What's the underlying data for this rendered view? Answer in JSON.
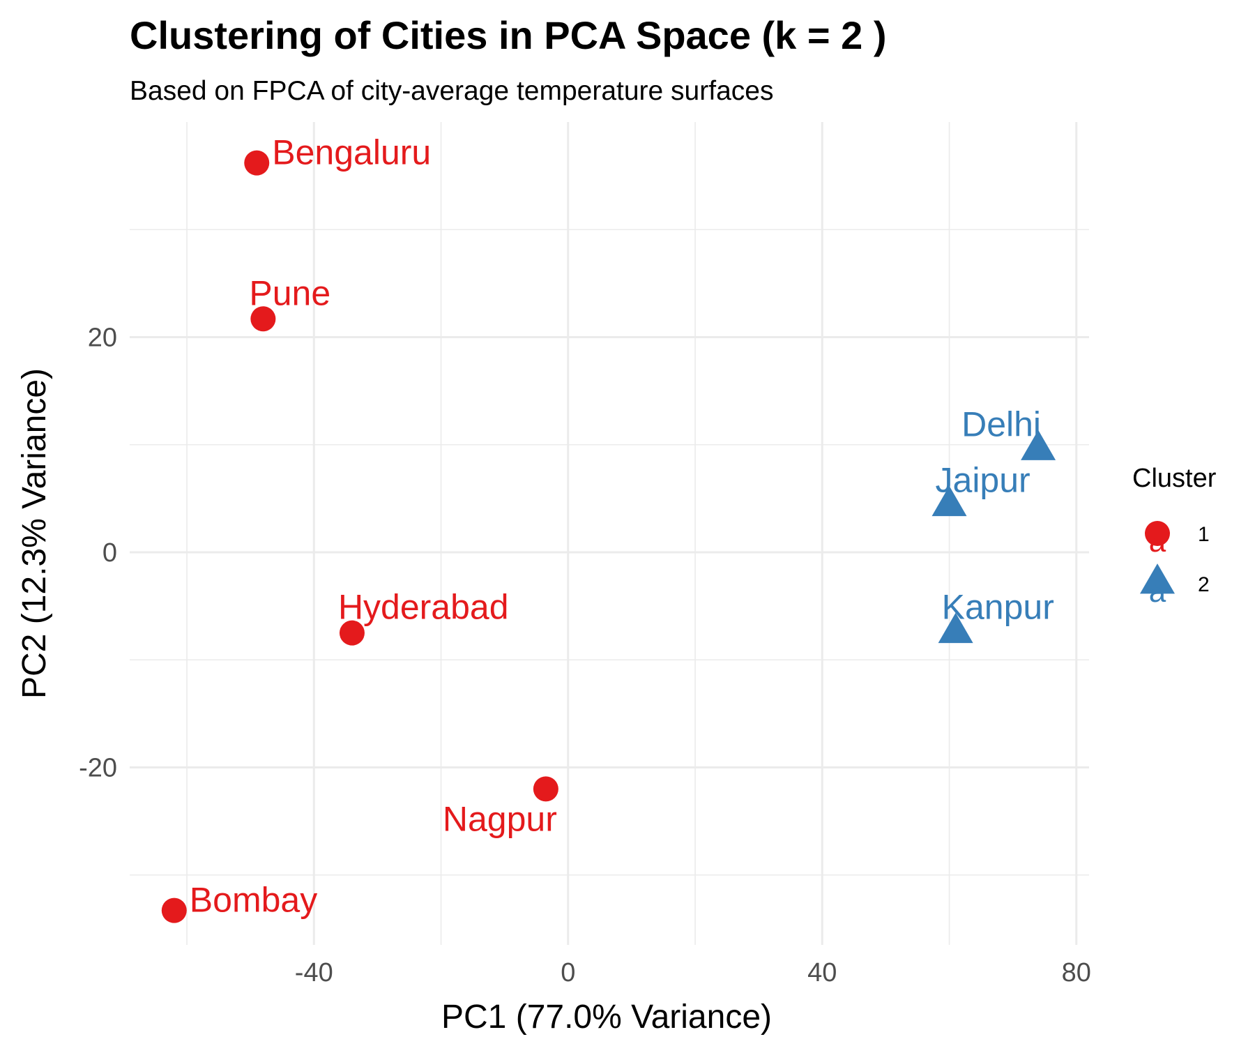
{
  "chart_data": {
    "type": "scatter",
    "title": "Clustering of Cities in PCA Space (k = 2 )",
    "subtitle": "Based on FPCA of city-average temperature surfaces",
    "xlabel": "PC1 (77.0% Variance)",
    "ylabel": "PC2 (12.3% Variance)",
    "xlim": [
      -69,
      82
    ],
    "ylim": [
      -36.5,
      40
    ],
    "x_ticks": [
      -40,
      0,
      40,
      80
    ],
    "x_tick_labels": [
      "-40",
      "0",
      "40",
      "80"
    ],
    "y_ticks": [
      -20,
      0,
      20
    ],
    "y_tick_labels": [
      "-20",
      "0",
      "20"
    ],
    "grid": true,
    "legend": {
      "title": "Cluster",
      "position": "right",
      "glyph_text": "a",
      "entries": [
        {
          "label": "1",
          "shape": "circle",
          "color": "#e41a1c"
        },
        {
          "label": "2",
          "shape": "triangle",
          "color": "#377eb8"
        }
      ]
    },
    "series": [
      {
        "cluster": "1",
        "shape": "circle",
        "color": "#e41a1c",
        "points": [
          {
            "label": "Bengaluru",
            "x": -49,
            "y": 36.2,
            "label_pos": "right"
          },
          {
            "label": "Pune",
            "x": -48,
            "y": 21.7,
            "label_pos": "above-right"
          },
          {
            "label": "Hyderabad",
            "x": -34,
            "y": -7.5,
            "label_pos": "above-right"
          },
          {
            "label": "Nagpur",
            "x": -3.5,
            "y": -22,
            "label_pos": "below-left"
          },
          {
            "label": "Bombay",
            "x": -62,
            "y": -33.3,
            "label_pos": "right"
          }
        ]
      },
      {
        "cluster": "2",
        "shape": "triangle",
        "color": "#377eb8",
        "points": [
          {
            "label": "Delhi",
            "x": 74,
            "y": 9.5,
            "label_pos": "above-left"
          },
          {
            "label": "Jaipur",
            "x": 60,
            "y": 4.3,
            "label_pos": "above-right"
          },
          {
            "label": "Kanpur",
            "x": 61,
            "y": -7.5,
            "label_pos": "above-right"
          }
        ]
      }
    ]
  }
}
